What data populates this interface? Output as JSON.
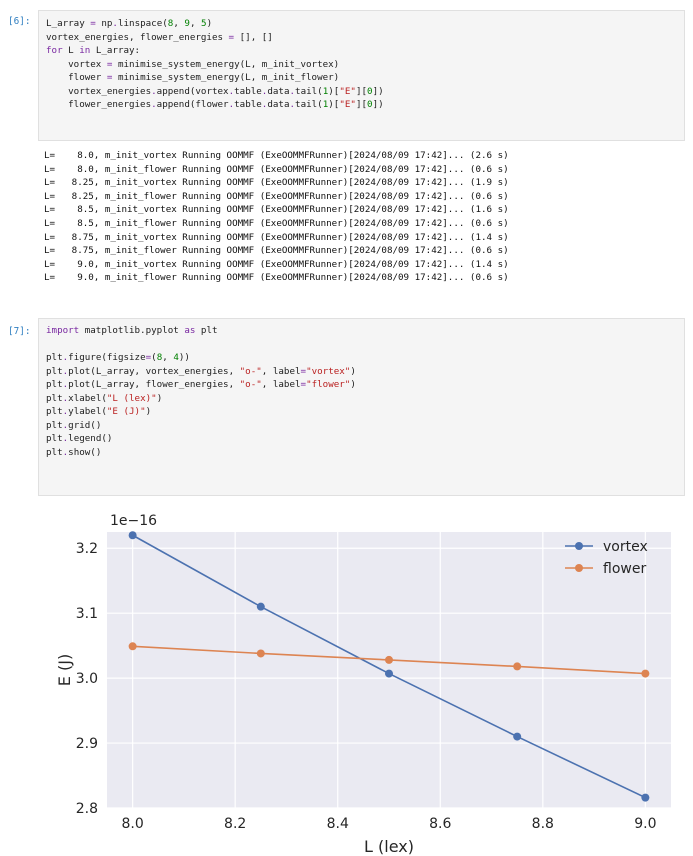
{
  "cell6": {
    "prompt": "[6]:",
    "lines": [
      [
        {
          "t": "L_array ",
          "c": ""
        },
        {
          "t": "=",
          "c": "op"
        },
        {
          "t": " np",
          "c": ""
        },
        {
          "t": ".",
          "c": "op"
        },
        {
          "t": "linspace(",
          "c": ""
        },
        {
          "t": "8",
          "c": "num"
        },
        {
          "t": ", ",
          "c": ""
        },
        {
          "t": "9",
          "c": "num"
        },
        {
          "t": ", ",
          "c": ""
        },
        {
          "t": "5",
          "c": "num"
        },
        {
          "t": ")",
          "c": ""
        }
      ],
      [
        {
          "t": "vortex_energies, flower_energies ",
          "c": ""
        },
        {
          "t": "=",
          "c": "op"
        },
        {
          "t": " [], []",
          "c": ""
        }
      ],
      [
        {
          "t": "for",
          "c": "kw"
        },
        {
          "t": " L ",
          "c": ""
        },
        {
          "t": "in",
          "c": "kw"
        },
        {
          "t": " L_array:",
          "c": ""
        }
      ],
      [
        {
          "t": "    vortex ",
          "c": ""
        },
        {
          "t": "=",
          "c": "op"
        },
        {
          "t": " minimise_system_energy(L, m_init_vortex)",
          "c": ""
        }
      ],
      [
        {
          "t": "    flower ",
          "c": ""
        },
        {
          "t": "=",
          "c": "op"
        },
        {
          "t": " minimise_system_energy(L, m_init_flower)",
          "c": ""
        }
      ],
      [
        {
          "t": "    vortex_energies",
          "c": ""
        },
        {
          "t": ".",
          "c": "op"
        },
        {
          "t": "append(vortex",
          "c": ""
        },
        {
          "t": ".",
          "c": "op"
        },
        {
          "t": "table",
          "c": ""
        },
        {
          "t": ".",
          "c": "op"
        },
        {
          "t": "data",
          "c": ""
        },
        {
          "t": ".",
          "c": "op"
        },
        {
          "t": "tail(",
          "c": ""
        },
        {
          "t": "1",
          "c": "num"
        },
        {
          "t": ")[",
          "c": ""
        },
        {
          "t": "\"E\"",
          "c": "str"
        },
        {
          "t": "][",
          "c": ""
        },
        {
          "t": "0",
          "c": "num"
        },
        {
          "t": "])",
          "c": ""
        }
      ],
      [
        {
          "t": "    flower_energies",
          "c": ""
        },
        {
          "t": ".",
          "c": "op"
        },
        {
          "t": "append(flower",
          "c": ""
        },
        {
          "t": ".",
          "c": "op"
        },
        {
          "t": "table",
          "c": ""
        },
        {
          "t": ".",
          "c": "op"
        },
        {
          "t": "data",
          "c": ""
        },
        {
          "t": ".",
          "c": "op"
        },
        {
          "t": "tail(",
          "c": ""
        },
        {
          "t": "1",
          "c": "num"
        },
        {
          "t": ")[",
          "c": ""
        },
        {
          "t": "\"E\"",
          "c": "str"
        },
        {
          "t": "][",
          "c": ""
        },
        {
          "t": "0",
          "c": "num"
        },
        {
          "t": "])",
          "c": ""
        }
      ]
    ]
  },
  "output6": [
    "L=    8.0, m_init_vortex Running OOMMF (ExeOOMMFRunner)[2024/08/09 17:42]... (2.6 s)",
    "L=    8.0, m_init_flower Running OOMMF (ExeOOMMFRunner)[2024/08/09 17:42]... (0.6 s)",
    "L=   8.25, m_init_vortex Running OOMMF (ExeOOMMFRunner)[2024/08/09 17:42]... (1.9 s)",
    "L=   8.25, m_init_flower Running OOMMF (ExeOOMMFRunner)[2024/08/09 17:42]... (0.6 s)",
    "L=    8.5, m_init_vortex Running OOMMF (ExeOOMMFRunner)[2024/08/09 17:42]... (1.6 s)",
    "L=    8.5, m_init_flower Running OOMMF (ExeOOMMFRunner)[2024/08/09 17:42]... (0.6 s)",
    "L=   8.75, m_init_vortex Running OOMMF (ExeOOMMFRunner)[2024/08/09 17:42]... (1.4 s)",
    "L=   8.75, m_init_flower Running OOMMF (ExeOOMMFRunner)[2024/08/09 17:42]... (0.6 s)",
    "L=    9.0, m_init_vortex Running OOMMF (ExeOOMMFRunner)[2024/08/09 17:42]... (1.4 s)",
    "L=    9.0, m_init_flower Running OOMMF (ExeOOMMFRunner)[2024/08/09 17:42]... (0.6 s)"
  ],
  "cell7": {
    "prompt": "[7]:",
    "lines": [
      [
        {
          "t": "import",
          "c": "kw"
        },
        {
          "t": " matplotlib.pyplot ",
          "c": ""
        },
        {
          "t": "as",
          "c": "kw"
        },
        {
          "t": " plt",
          "c": ""
        }
      ],
      [
        {
          "t": "",
          "c": ""
        }
      ],
      [
        {
          "t": "plt",
          "c": ""
        },
        {
          "t": ".",
          "c": "op"
        },
        {
          "t": "figure(figsize",
          "c": ""
        },
        {
          "t": "=",
          "c": "op"
        },
        {
          "t": "(",
          "c": ""
        },
        {
          "t": "8",
          "c": "num"
        },
        {
          "t": ", ",
          "c": ""
        },
        {
          "t": "4",
          "c": "num"
        },
        {
          "t": "))",
          "c": ""
        }
      ],
      [
        {
          "t": "plt",
          "c": ""
        },
        {
          "t": ".",
          "c": "op"
        },
        {
          "t": "plot(L_array, vortex_energies, ",
          "c": ""
        },
        {
          "t": "\"o-\"",
          "c": "str"
        },
        {
          "t": ", label",
          "c": ""
        },
        {
          "t": "=",
          "c": "op"
        },
        {
          "t": "\"vortex\"",
          "c": "str"
        },
        {
          "t": ")",
          "c": ""
        }
      ],
      [
        {
          "t": "plt",
          "c": ""
        },
        {
          "t": ".",
          "c": "op"
        },
        {
          "t": "plot(L_array, flower_energies, ",
          "c": ""
        },
        {
          "t": "\"o-\"",
          "c": "str"
        },
        {
          "t": ", label",
          "c": ""
        },
        {
          "t": "=",
          "c": "op"
        },
        {
          "t": "\"flower\"",
          "c": "str"
        },
        {
          "t": ")",
          "c": ""
        }
      ],
      [
        {
          "t": "plt",
          "c": ""
        },
        {
          "t": ".",
          "c": "op"
        },
        {
          "t": "xlabel(",
          "c": ""
        },
        {
          "t": "\"L (lex)\"",
          "c": "str"
        },
        {
          "t": ")",
          "c": ""
        }
      ],
      [
        {
          "t": "plt",
          "c": ""
        },
        {
          "t": ".",
          "c": "op"
        },
        {
          "t": "ylabel(",
          "c": ""
        },
        {
          "t": "\"E (J)\"",
          "c": "str"
        },
        {
          "t": ")",
          "c": ""
        }
      ],
      [
        {
          "t": "plt",
          "c": ""
        },
        {
          "t": ".",
          "c": "op"
        },
        {
          "t": "grid()",
          "c": ""
        }
      ],
      [
        {
          "t": "plt",
          "c": ""
        },
        {
          "t": ".",
          "c": "op"
        },
        {
          "t": "legend()",
          "c": ""
        }
      ],
      [
        {
          "t": "plt",
          "c": ""
        },
        {
          "t": ".",
          "c": "op"
        },
        {
          "t": "show()",
          "c": ""
        }
      ]
    ]
  },
  "chart_data": {
    "type": "line",
    "xlabel": "L (lex)",
    "ylabel": "E (J)",
    "offset_label": "1e−16",
    "xlim": [
      7.95,
      9.05
    ],
    "ylim": [
      2.8,
      3.225
    ],
    "xticks": [
      "8.0",
      "8.2",
      "8.4",
      "8.6",
      "8.8",
      "9.0"
    ],
    "xtick_values": [
      8.0,
      8.2,
      8.4,
      8.6,
      8.8,
      9.0
    ],
    "yticks": [
      "2.8",
      "2.9",
      "3.0",
      "3.1",
      "3.2"
    ],
    "ytick_values": [
      2.8,
      2.9,
      3.0,
      3.1,
      3.2
    ],
    "grid": true,
    "legend_position": "top-right",
    "x": [
      8.0,
      8.25,
      8.5,
      8.75,
      9.0
    ],
    "series": [
      {
        "name": "vortex",
        "color": "#4c72b0",
        "values": [
          3.22,
          3.11,
          3.007,
          2.91,
          2.816
        ]
      },
      {
        "name": "flower",
        "color": "#dd8452",
        "values": [
          3.049,
          3.038,
          3.028,
          3.018,
          3.007
        ]
      }
    ]
  }
}
